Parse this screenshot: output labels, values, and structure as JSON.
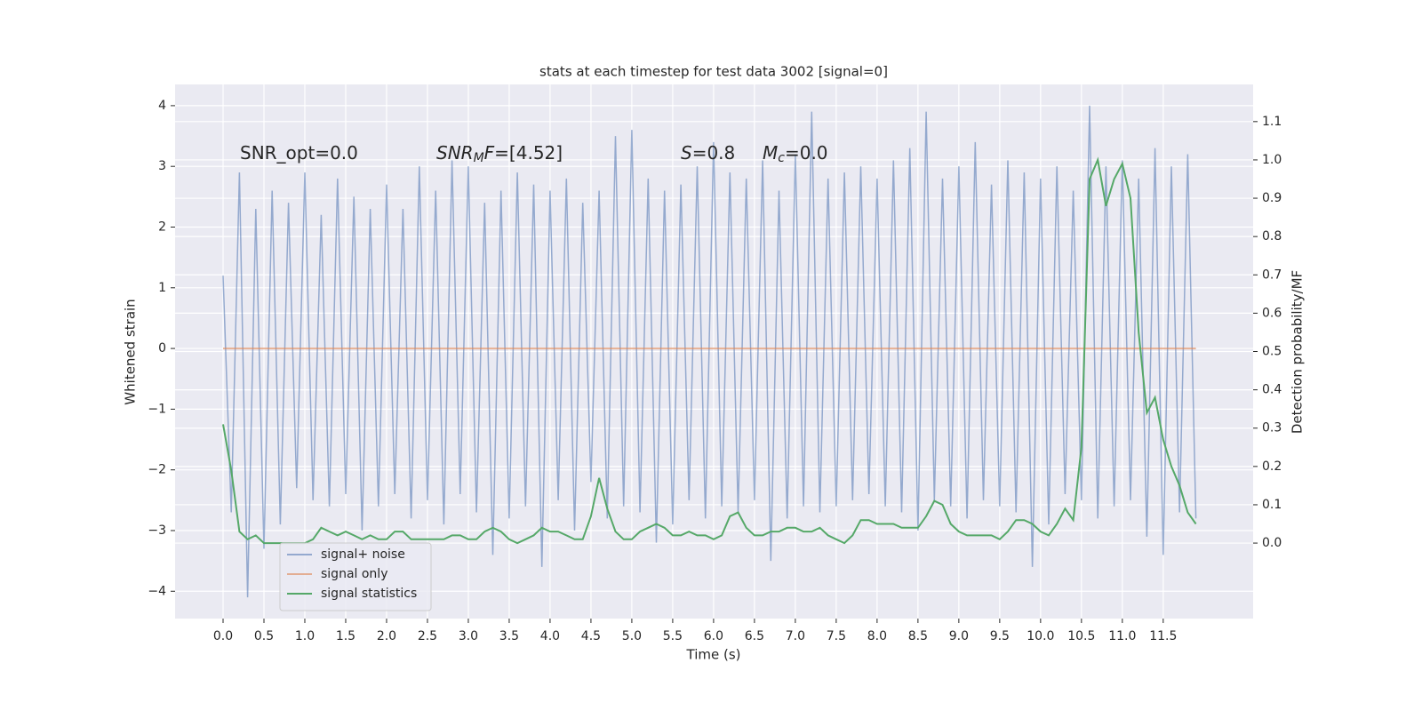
{
  "chart_data": {
    "type": "line",
    "title": "stats at each timestep for test data 3002 [signal=0]",
    "xlabel": "Time (s)",
    "ylabel": "Whitened strain",
    "y2label": "Detection probability/MF",
    "annotations": [
      [
        {
          "text": "SNR_opt=0.0",
          "style": "normal"
        }
      ],
      [
        {
          "text": "SNR",
          "style": "italic"
        },
        {
          "text": "M",
          "style": "sub"
        },
        {
          "text": "F",
          "style": "italic"
        },
        {
          "text": "=[4.52]",
          "style": "normal"
        }
      ],
      [
        {
          "text": "S",
          "style": "italic"
        },
        {
          "text": "=0.8",
          "style": "normal"
        }
      ],
      [
        {
          "text": "M",
          "style": "italic"
        },
        {
          "text": "c",
          "style": "sub"
        },
        {
          "text": "=0.0",
          "style": "normal"
        }
      ]
    ],
    "x": [
      0,
      0.1,
      0.2,
      0.3,
      0.4,
      0.5,
      0.6,
      0.7,
      0.8,
      0.9,
      1,
      1.1,
      1.2,
      1.3,
      1.4,
      1.5,
      1.6,
      1.7,
      1.8,
      1.9,
      2,
      2.1,
      2.2,
      2.3,
      2.4,
      2.5,
      2.6,
      2.7,
      2.8,
      2.9,
      3,
      3.1,
      3.2,
      3.3,
      3.4,
      3.5,
      3.6,
      3.7,
      3.8,
      3.9,
      4,
      4.1,
      4.2,
      4.3,
      4.4,
      4.5,
      4.6,
      4.7,
      4.8,
      4.9,
      5,
      5.1,
      5.2,
      5.3,
      5.4,
      5.5,
      5.6,
      5.7,
      5.8,
      5.9,
      6,
      6.1,
      6.2,
      6.3,
      6.4,
      6.5,
      6.6,
      6.7,
      6.8,
      6.9,
      7,
      7.1,
      7.2,
      7.3,
      7.4,
      7.5,
      7.6,
      7.7,
      7.8,
      7.9,
      8,
      8.1,
      8.2,
      8.3,
      8.4,
      8.5,
      8.6,
      8.7,
      8.8,
      8.9,
      9,
      9.1,
      9.2,
      9.3,
      9.4,
      9.5,
      9.6,
      9.7,
      9.8,
      9.9,
      10,
      10.1,
      10.2,
      10.3,
      10.4,
      10.5,
      10.6,
      10.7,
      10.8,
      10.9,
      11,
      11.1,
      11.2,
      11.3,
      11.4,
      11.5,
      11.6,
      11.7,
      11.8,
      11.9
    ],
    "series": [
      {
        "name": "signal+ noise",
        "color": "#4c72b0",
        "values": [
          1.2,
          -2.7,
          2.9,
          -4.1,
          2.3,
          -3.3,
          2.6,
          -2.9,
          2.4,
          -2.3,
          2.9,
          -2.5,
          2.2,
          -2.6,
          2.8,
          -2.4,
          2.5,
          -3.0,
          2.3,
          -2.6,
          2.7,
          -2.4,
          2.3,
          -2.8,
          3.0,
          -2.5,
          2.6,
          -2.9,
          3.1,
          -2.4,
          3.0,
          -2.7,
          2.4,
          -3.4,
          2.6,
          -2.8,
          2.9,
          -2.6,
          2.7,
          -3.6,
          2.6,
          -2.5,
          2.8,
          -3.0,
          2.4,
          -2.2,
          2.6,
          -2.8,
          3.5,
          -2.6,
          3.6,
          -2.7,
          2.8,
          -3.2,
          2.6,
          -2.9,
          2.7,
          -2.5,
          3.0,
          -2.8,
          3.4,
          -2.6,
          2.9,
          -2.7,
          2.8,
          -2.5,
          3.1,
          -3.5,
          2.6,
          -2.8,
          3.2,
          -2.6,
          3.9,
          -2.7,
          2.8,
          -2.6,
          2.9,
          -2.5,
          3.0,
          -2.4,
          2.8,
          -2.6,
          3.1,
          -2.7,
          3.3,
          -3.0,
          3.9,
          -2.5,
          2.8,
          -2.6,
          3.0,
          -2.8,
          3.4,
          -2.5,
          2.7,
          -2.6,
          3.1,
          -2.7,
          2.9,
          -3.6,
          2.8,
          -2.9,
          3.0,
          -2.4,
          2.6,
          -2.5,
          4.0,
          -2.8,
          3.0,
          -2.6,
          3.1,
          -2.5,
          2.8,
          -3.1,
          3.3,
          -3.4,
          3.0,
          -2.7,
          3.2,
          -2.8
        ]
      },
      {
        "name": "signal only",
        "color": "#dd8452",
        "values": [
          0,
          0,
          0,
          0,
          0,
          0,
          0,
          0,
          0,
          0,
          0,
          0,
          0,
          0,
          0,
          0,
          0,
          0,
          0,
          0,
          0,
          0,
          0,
          0,
          0,
          0,
          0,
          0,
          0,
          0,
          0,
          0,
          0,
          0,
          0,
          0,
          0,
          0,
          0,
          0,
          0,
          0,
          0,
          0,
          0,
          0,
          0,
          0,
          0,
          0,
          0,
          0,
          0,
          0,
          0,
          0,
          0,
          0,
          0,
          0,
          0,
          0,
          0,
          0,
          0,
          0,
          0,
          0,
          0,
          0,
          0,
          0,
          0,
          0,
          0,
          0,
          0,
          0,
          0,
          0,
          0,
          0,
          0,
          0,
          0,
          0,
          0,
          0,
          0,
          0,
          0,
          0,
          0,
          0,
          0,
          0,
          0,
          0,
          0,
          0,
          0,
          0,
          0,
          0,
          0,
          0,
          0,
          0,
          0,
          0,
          0,
          0,
          0,
          0,
          0,
          0,
          0,
          0,
          0,
          0
        ]
      },
      {
        "name": "signal statistics",
        "color": "#55a868",
        "axis": "y2",
        "values": [
          0.31,
          0.19,
          0.03,
          0.01,
          0.02,
          0.0,
          0.0,
          0.0,
          0.0,
          0.0,
          0.0,
          0.01,
          0.04,
          0.03,
          0.02,
          0.03,
          0.02,
          0.01,
          0.02,
          0.01,
          0.01,
          0.03,
          0.03,
          0.01,
          0.01,
          0.01,
          0.01,
          0.01,
          0.02,
          0.02,
          0.01,
          0.01,
          0.03,
          0.04,
          0.03,
          0.01,
          0.0,
          0.01,
          0.02,
          0.04,
          0.03,
          0.03,
          0.02,
          0.01,
          0.01,
          0.07,
          0.17,
          0.09,
          0.03,
          0.01,
          0.01,
          0.03,
          0.04,
          0.05,
          0.04,
          0.02,
          0.02,
          0.03,
          0.02,
          0.02,
          0.01,
          0.02,
          0.07,
          0.08,
          0.04,
          0.02,
          0.02,
          0.03,
          0.03,
          0.04,
          0.04,
          0.03,
          0.03,
          0.04,
          0.02,
          0.01,
          0.0,
          0.02,
          0.06,
          0.06,
          0.05,
          0.05,
          0.05,
          0.04,
          0.04,
          0.04,
          0.07,
          0.11,
          0.1,
          0.05,
          0.03,
          0.02,
          0.02,
          0.02,
          0.02,
          0.01,
          0.03,
          0.06,
          0.06,
          0.05,
          0.03,
          0.02,
          0.05,
          0.09,
          0.06,
          0.25,
          0.95,
          1.0,
          0.88,
          0.95,
          0.99,
          0.9,
          0.55,
          0.34,
          0.38,
          0.27,
          0.2,
          0.15,
          0.08,
          0.05
        ]
      }
    ],
    "xlim": [
      -0.587,
      12.6
    ],
    "ylim": [
      -4.45,
      4.35
    ],
    "y2lim": [
      -0.197,
      1.197
    ],
    "xticks": [
      {
        "value": 0,
        "label": "0.0"
      },
      {
        "value": 0.5,
        "label": "0.5"
      },
      {
        "value": 1,
        "label": "1.0"
      },
      {
        "value": 1.5,
        "label": "1.5"
      },
      {
        "value": 2,
        "label": "2.0"
      },
      {
        "value": 2.5,
        "label": "2.5"
      },
      {
        "value": 3,
        "label": "3.0"
      },
      {
        "value": 3.5,
        "label": "3.5"
      },
      {
        "value": 4,
        "label": "4.0"
      },
      {
        "value": 4.5,
        "label": "4.5"
      },
      {
        "value": 5,
        "label": "5.0"
      },
      {
        "value": 5.5,
        "label": "5.5"
      },
      {
        "value": 6,
        "label": "6.0"
      },
      {
        "value": 6.5,
        "label": "6.5"
      },
      {
        "value": 7,
        "label": "7.0"
      },
      {
        "value": 7.5,
        "label": "7.5"
      },
      {
        "value": 8,
        "label": "8.0"
      },
      {
        "value": 8.5,
        "label": "8.5"
      },
      {
        "value": 9,
        "label": "9.0"
      },
      {
        "value": 9.5,
        "label": "9.5"
      },
      {
        "value": 10,
        "label": "10.0"
      },
      {
        "value": 10.5,
        "label": "10.5"
      },
      {
        "value": 11,
        "label": "11.0"
      },
      {
        "value": 11.5,
        "label": "11.5"
      }
    ],
    "yticks": [
      {
        "value": -4,
        "label": "−4"
      },
      {
        "value": -3,
        "label": "−3"
      },
      {
        "value": -2,
        "label": "−2"
      },
      {
        "value": -1,
        "label": "−1"
      },
      0,
      1,
      2,
      3,
      4
    ],
    "y2ticks": [
      {
        "value": 0,
        "label": "0.0"
      },
      {
        "value": 0.1,
        "label": "0.1"
      },
      {
        "value": 0.2,
        "label": "0.2"
      },
      {
        "value": 0.3,
        "label": "0.3"
      },
      {
        "value": 0.4,
        "label": "0.4"
      },
      {
        "value": 0.5,
        "label": "0.5"
      },
      {
        "value": 0.6,
        "label": "0.6"
      },
      {
        "value": 0.7,
        "label": "0.7"
      },
      {
        "value": 0.8,
        "label": "0.8"
      },
      {
        "value": 0.9,
        "label": "0.9"
      },
      {
        "value": 1.0,
        "label": "1.0"
      },
      {
        "value": 1.1,
        "label": "1.1"
      }
    ],
    "grid": true,
    "legend": "lower left"
  }
}
